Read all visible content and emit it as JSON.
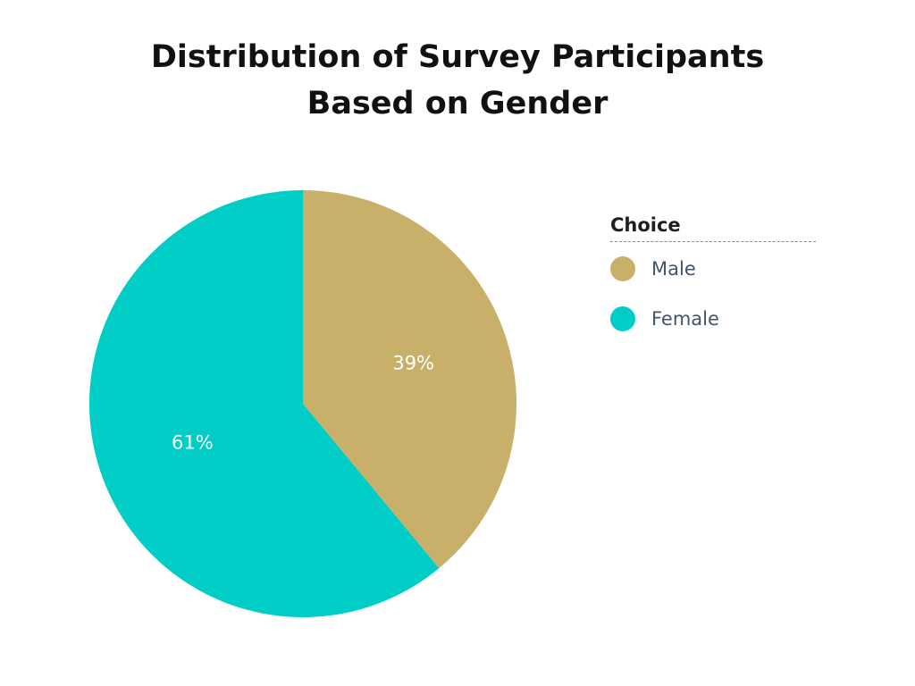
{
  "chart_data": {
    "type": "pie",
    "title": "Distribution of Survey Participants Based on Gender",
    "title_lines": [
      "Distribution of Survey Participants",
      "Based on Gender"
    ],
    "legend_title": "Choice",
    "legend_position": "right",
    "categories": [
      "Male",
      "Female"
    ],
    "values": [
      39,
      61
    ],
    "value_labels": [
      "39%",
      "61%"
    ],
    "colors": [
      "#c8b06a",
      "#00cdc6"
    ]
  }
}
